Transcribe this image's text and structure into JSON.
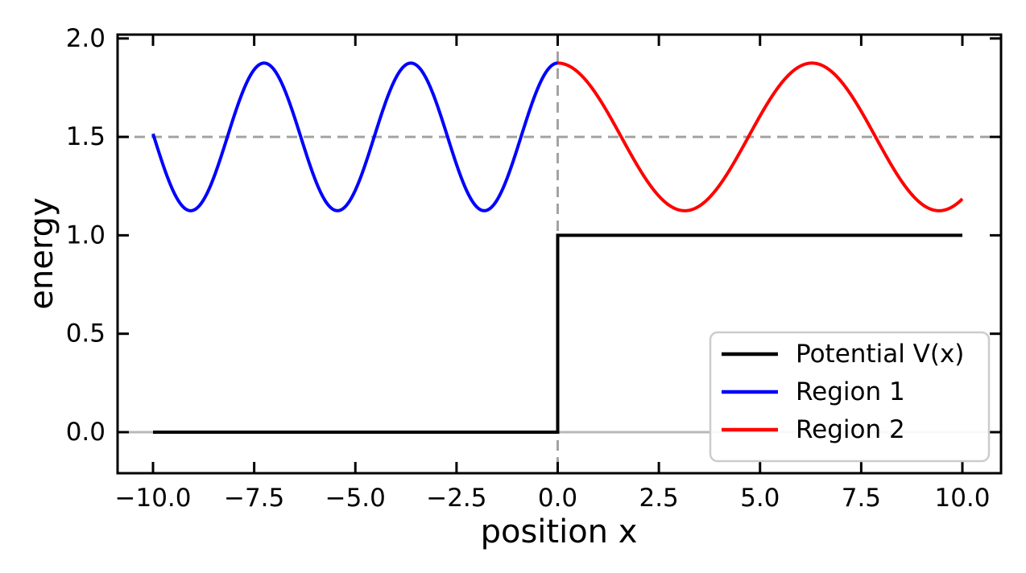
{
  "chart_data": {
    "type": "line",
    "title": "",
    "xlabel": "position x",
    "ylabel": "energy",
    "x_data_range": [
      -10,
      10
    ],
    "y_data_range": [
      0,
      2
    ],
    "xlim": [
      -10.9,
      10.9
    ],
    "ylim": [
      -0.21,
      2.02
    ],
    "grid": false,
    "xticks": {
      "values": [
        -10,
        -7.5,
        -5,
        -2.5,
        0,
        2.5,
        5,
        7.5,
        10
      ],
      "labels": [
        "−10.0",
        "−7.5",
        "−5.0",
        "−2.5",
        "0.0",
        "2.5",
        "5.0",
        "7.5",
        "10.0"
      ]
    },
    "yticks": {
      "values": [
        0,
        0.5,
        1,
        1.5,
        2
      ],
      "labels": [
        "0.0",
        "0.5",
        "1.0",
        "1.5",
        "2.0"
      ]
    },
    "series": [
      {
        "name": "Potential V(x)",
        "type": "step",
        "color": "#000000",
        "points": [
          [
            -10,
            0
          ],
          [
            0,
            0
          ],
          [
            0,
            1
          ],
          [
            10,
            1
          ]
        ]
      },
      {
        "name": "Region 1",
        "type": "cosine_wave",
        "color": "#0000ff",
        "x_start": -10,
        "x_end": 0,
        "center": 1.5,
        "amplitude": 0.375,
        "angular_frequency": 1.7320508,
        "phase": 0,
        "peak_value": 1.875,
        "trough_value": 1.125
      },
      {
        "name": "Region 2",
        "type": "cosine_wave",
        "color": "#ff0000",
        "x_start": 0,
        "x_end": 10,
        "center": 1.5,
        "amplitude": 0.375,
        "angular_frequency": 1.0,
        "phase": 0,
        "peak_value": 1.875,
        "trough_value": 1.125
      }
    ],
    "reference_lines": [
      {
        "orientation": "horizontal",
        "value": 0,
        "style": "solid",
        "color": "#b8b8b8"
      },
      {
        "orientation": "horizontal",
        "value": 1.5,
        "style": "dashed",
        "color": "#a3a3a3"
      },
      {
        "orientation": "vertical",
        "value": 0,
        "style": "dashed",
        "color": "#a3a3a3"
      }
    ],
    "legend": {
      "position": "lower right",
      "entries": [
        {
          "label": "Potential V(x)",
          "color": "#000000"
        },
        {
          "label": "Region 1",
          "color": "#0000ff"
        },
        {
          "label": "Region 2",
          "color": "#ff0000"
        }
      ]
    }
  },
  "colors": {
    "background": "#ffffff",
    "axes_frame": "#000000",
    "tick_text": "#000000",
    "legend_border": "#cccccc",
    "legend_background": "#ffffff"
  }
}
